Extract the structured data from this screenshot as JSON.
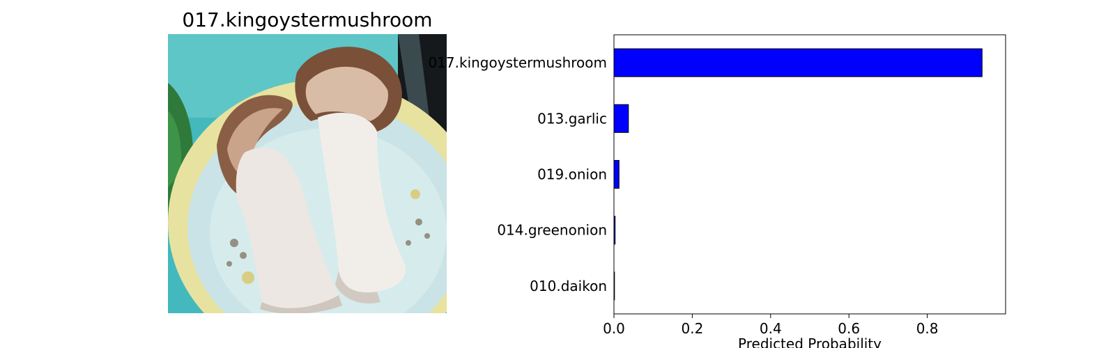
{
  "image_panel": {
    "title": "017.kingoystermushroom",
    "photo": {
      "subject": "two king oyster mushrooms on a floral plate",
      "icon": "mushroom-photo"
    }
  },
  "colors": {
    "bar_fill": "#0000ff",
    "bar_edge": "#000000",
    "frame": "#000000"
  },
  "chart_data": {
    "type": "bar",
    "orientation": "horizontal",
    "categories": [
      "017.kingoystermushroom",
      "013.garlic",
      "019.onion",
      "014.greenonion",
      "010.daikon"
    ],
    "values": [
      0.94,
      0.037,
      0.013,
      0.003,
      0.001
    ],
    "title": "",
    "xlabel": "Predicted Probability",
    "ylabel": "",
    "xlim": [
      0,
      1.0
    ],
    "xticks": [
      0.0,
      0.2,
      0.4,
      0.6,
      0.8
    ],
    "xtick_labels": [
      "0.0",
      "0.2",
      "0.4",
      "0.6",
      "0.8"
    ],
    "grid": false,
    "legend": "none"
  }
}
